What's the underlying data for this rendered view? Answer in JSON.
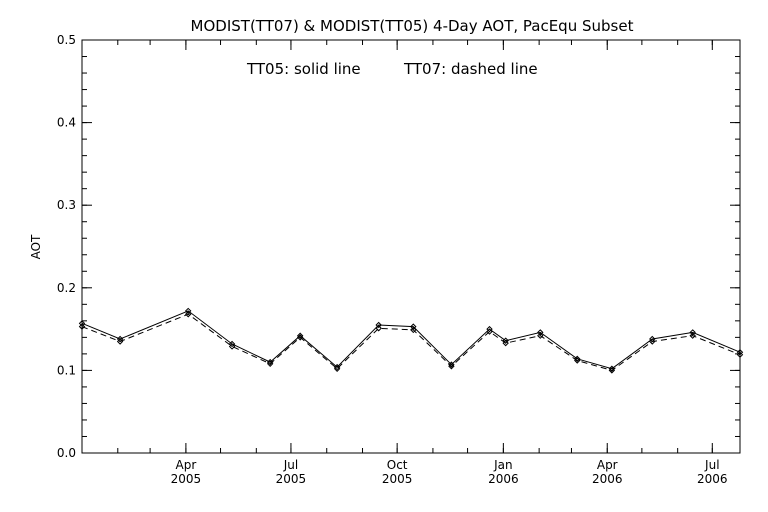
{
  "chart_data": {
    "type": "line",
    "title": "MODIST(TT07) & MODIST(TT05) 4-Day AOT, PacEqu Subset",
    "annotation_tt05": "TT05: solid line",
    "annotation_tt07": "TT07: dashed line",
    "xlabel": "",
    "ylabel": "AOT",
    "xlim": [
      "2005-01-01",
      "2006-07-25"
    ],
    "ylim": [
      0.0,
      0.5
    ],
    "yticks": [
      "0.0",
      "0.1",
      "0.2",
      "0.3",
      "0.4",
      "0.5"
    ],
    "xticks": [
      {
        "date": "2005-04-01",
        "month": "Apr",
        "year": "2005"
      },
      {
        "date": "2005-07-01",
        "month": "Jul",
        "year": "2005"
      },
      {
        "date": "2005-10-01",
        "month": "Oct",
        "year": "2005"
      },
      {
        "date": "2006-01-01",
        "month": "Jan",
        "year": "2006"
      },
      {
        "date": "2006-04-01",
        "month": "Apr",
        "year": "2006"
      },
      {
        "date": "2006-07-01",
        "month": "Jul",
        "year": "2006"
      }
    ],
    "x": [
      "2005-01-01",
      "2005-02-03",
      "2005-04-03",
      "2005-05-11",
      "2005-06-13",
      "2005-07-09",
      "2005-08-10",
      "2005-09-15",
      "2005-10-15",
      "2005-11-17",
      "2005-12-20",
      "2006-01-03",
      "2006-02-02",
      "2006-03-06",
      "2006-04-05",
      "2006-05-10",
      "2006-06-14",
      "2006-07-25"
    ],
    "series": [
      {
        "name": "TT05",
        "style": "solid",
        "values": [
          0.157,
          0.138,
          0.172,
          0.132,
          0.11,
          0.142,
          0.104,
          0.155,
          0.153,
          0.107,
          0.15,
          0.136,
          0.146,
          0.114,
          0.102,
          0.138,
          0.146,
          0.122
        ]
      },
      {
        "name": "TT07",
        "style": "dashed",
        "values": [
          0.153,
          0.135,
          0.168,
          0.129,
          0.108,
          0.14,
          0.102,
          0.151,
          0.149,
          0.105,
          0.147,
          0.133,
          0.142,
          0.112,
          0.1,
          0.135,
          0.142,
          0.119
        ]
      }
    ],
    "grid": false,
    "colors": {
      "line": "#000000",
      "axes": "#000000",
      "background": "#ffffff"
    }
  }
}
